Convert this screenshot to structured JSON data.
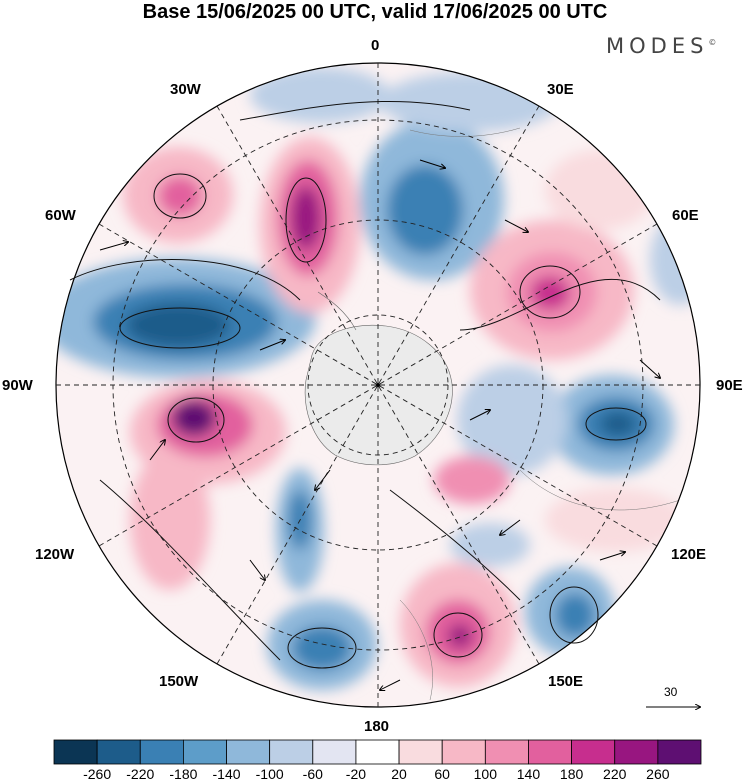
{
  "title": "Base 15/06/2025 00 UTC, valid 17/06/2025 00 UTC",
  "brand": "MODES",
  "brand_mark": "©",
  "map": {
    "projection": "south polar stereographic",
    "longitude_labels": [
      "0",
      "30E",
      "60E",
      "90E",
      "120E",
      "150E",
      "180",
      "150W",
      "120W",
      "90W",
      "60W",
      "30W"
    ]
  },
  "wind_vectors": {
    "reference_label": "30"
  },
  "colorbar": {
    "ticks": [
      "-260",
      "-220",
      "-180",
      "-140",
      "-100",
      "-60",
      "-20",
      "20",
      "60",
      "100",
      "140",
      "180",
      "220",
      "260"
    ],
    "colors": [
      "#0b3554",
      "#1d5c8a",
      "#3a80b4",
      "#5d9dc9",
      "#8fb8da",
      "#bccfe6",
      "#e3e5f2",
      "#ffffff",
      "#f9dcdf",
      "#f7b8c6",
      "#f08fb2",
      "#e2609e",
      "#c72e8e",
      "#981680",
      "#5e0f72"
    ]
  }
}
